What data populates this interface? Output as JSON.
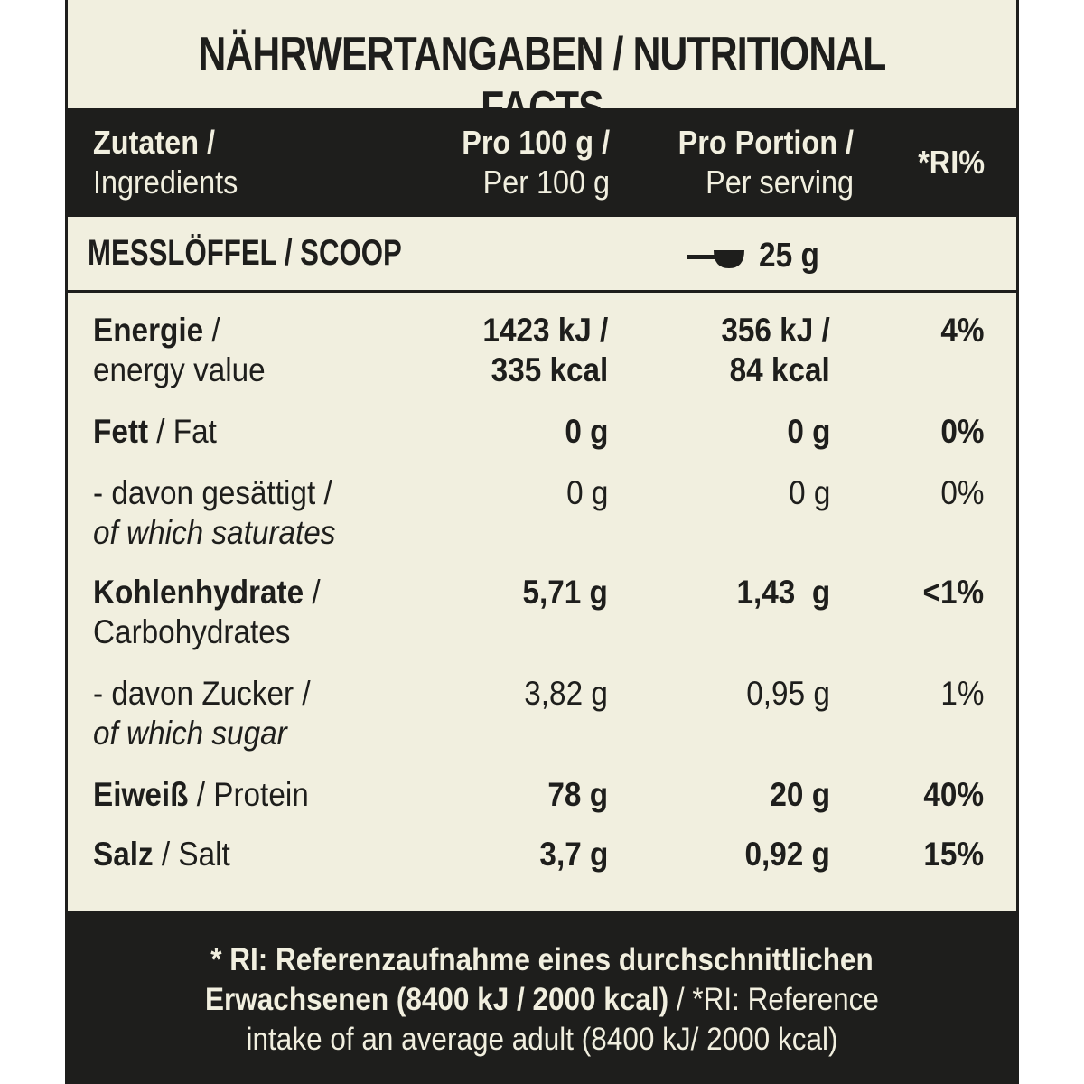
{
  "title": "NÄHRWERTANGABEN / NUTRITIONAL FACTS",
  "header": {
    "ingredients_de": "Zutaten /",
    "ingredients_en": "Ingredients",
    "per100_de": "Pro 100 g /",
    "per100_en": "Per 100 g",
    "portion_de": "Pro Portion /",
    "portion_en": "Per serving",
    "ri": "*RI%"
  },
  "scoop": {
    "label": "MESSLÖFFEL / SCOOP",
    "icon": "scoop-icon",
    "amount": "25 g"
  },
  "rows": [
    {
      "name_de": "Energie",
      "name_en": "energy value",
      "per100_line1": "1423 kJ /",
      "per100_line2": "335 kcal",
      "portion_line1": "356 kJ /",
      "portion_line2": "84 kcal",
      "ri": "4%"
    },
    {
      "name_de": "Fett",
      "name_en": "Fat",
      "per100": "0 g",
      "portion": "0 g",
      "ri": "0%"
    },
    {
      "name_de": "- davon gesättigt /",
      "name_en": "of which saturates",
      "per100": "0 g",
      "portion": "0 g",
      "ri": "0%"
    },
    {
      "name_de": "Kohlenhydrate",
      "name_en": "Carbohydrates",
      "per100": "5,71 g",
      "portion": "1,43  g",
      "ri": "<1%"
    },
    {
      "name_de": "- davon Zucker /",
      "name_en": "of which sugar",
      "per100": "3,82 g",
      "portion": "0,95 g",
      "ri": "1%"
    },
    {
      "name_de": "Eiweiß",
      "name_en": "Protein",
      "per100": "78 g",
      "portion": "20 g",
      "ri": "40%"
    },
    {
      "name_de": "Salz",
      "name_en": "Salt",
      "per100": "3,7 g",
      "portion": "0,92 g",
      "ri": "15%"
    }
  ],
  "separator": " / ",
  "footer": {
    "line1": "* RI: Referenzaufnahme eines durchschnittlichen",
    "line2_bold": "Erwachsenen (8400 kJ / 2000 kcal)",
    "line2_rest": " / *RI: Reference",
    "line3": "intake of an average adult (8400 kJ/ 2000 kcal)"
  },
  "colors": {
    "background": "#f1efdf",
    "dark": "#1e1e1c"
  }
}
